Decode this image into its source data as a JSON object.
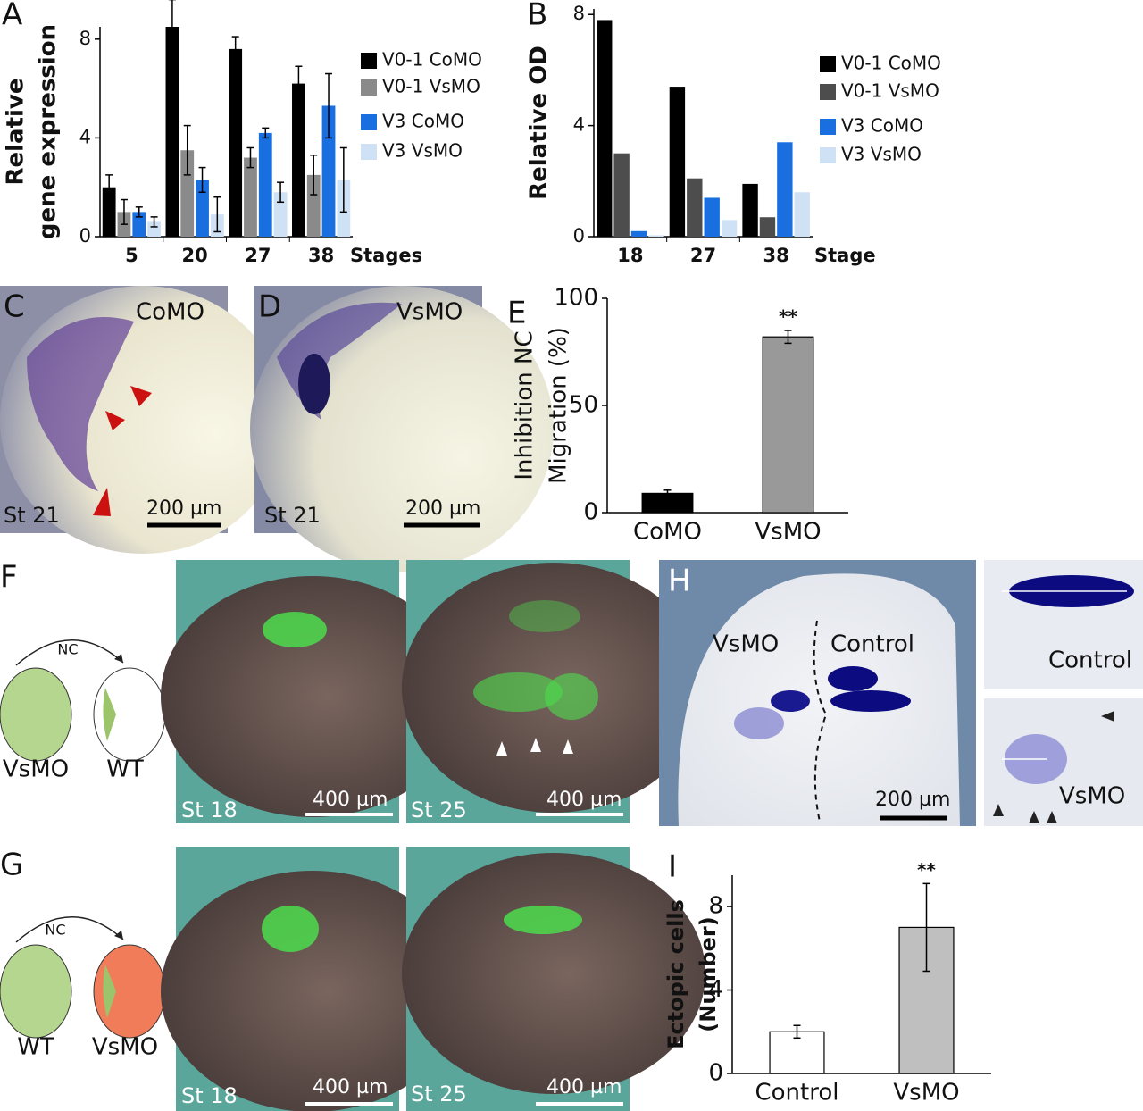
{
  "chart_data": [
    {
      "type": "bar",
      "panel": "A",
      "ylabel": [
        "Relative",
        "gene expression"
      ],
      "xlabel": "Stages",
      "categories": [
        "5",
        "20",
        "27",
        "38"
      ],
      "ylim": [
        0,
        8.5
      ],
      "yticks": [
        0,
        4,
        8
      ],
      "legend": "right",
      "errorbars": true,
      "series": [
        {
          "name": "V0-1 CoMO",
          "color": "#000000",
          "values": [
            2.0,
            8.5,
            7.6,
            6.2
          ],
          "errors": [
            0.5,
            1.1,
            0.5,
            0.7
          ]
        },
        {
          "name": "V0-1 VsMO",
          "color": "#8a8a8a",
          "values": [
            1.0,
            3.5,
            3.2,
            2.5
          ],
          "errors": [
            0.5,
            1.0,
            0.4,
            0.8
          ]
        },
        {
          "name": "V3 CoMO",
          "color": "#1a6fe0",
          "values": [
            1.0,
            2.3,
            4.2,
            5.3
          ],
          "errors": [
            0.2,
            0.5,
            0.2,
            1.3
          ]
        },
        {
          "name": "V3 VsMO",
          "color": "#cfe2f5",
          "values": [
            0.6,
            0.9,
            1.8,
            2.3
          ],
          "errors": [
            0.2,
            0.7,
            0.4,
            1.3
          ]
        }
      ]
    },
    {
      "type": "bar",
      "panel": "B",
      "ylabel": [
        "Relative OD"
      ],
      "xlabel": "Stage",
      "categories": [
        "18",
        "27",
        "38"
      ],
      "ylim": [
        0,
        8.2
      ],
      "yticks": [
        0,
        4,
        8
      ],
      "legend": "right",
      "series": [
        {
          "name": "V0-1 CoMO",
          "color": "#000000",
          "values": [
            7.8,
            5.4,
            1.9
          ]
        },
        {
          "name": "V0-1 VsMO",
          "color": "#4d4d4d",
          "values": [
            3.0,
            2.1,
            0.7
          ]
        },
        {
          "name": "V3 CoMO",
          "color": "#1a6fe0",
          "values": [
            0.2,
            1.4,
            3.4
          ]
        },
        {
          "name": "V3 VsMO",
          "color": "#cfe2f5",
          "values": [
            0.05,
            0.6,
            1.6
          ]
        }
      ]
    },
    {
      "type": "bar",
      "panel": "E",
      "ylabel": [
        "Inhibition NC",
        "Migration (%)"
      ],
      "categories": [
        "CoMO",
        "VsMO"
      ],
      "values": [
        9,
        82
      ],
      "errors": [
        1.5,
        3
      ],
      "colors": [
        "#000000",
        "#999999"
      ],
      "significance": [
        null,
        "**"
      ],
      "ylim": [
        0,
        100
      ],
      "yticks": [
        0,
        50,
        100
      ],
      "errorbars": true
    },
    {
      "type": "bar",
      "panel": "I",
      "ylabel": [
        "Ectopic cells",
        "(Number)"
      ],
      "categories": [
        "Control",
        "VsMO"
      ],
      "values": [
        2.0,
        7.0
      ],
      "errors": [
        0.3,
        2.1
      ],
      "colors": [
        "#ffffff",
        "#bfbfbf"
      ],
      "significance": [
        null,
        "**"
      ],
      "ylim": [
        0,
        9.5
      ],
      "yticks": [
        0,
        4,
        8
      ],
      "errorbars": true
    }
  ],
  "panels": {
    "C": {
      "letter": "C",
      "label": "CoMO",
      "stage": "St 21",
      "scale": "200 µm"
    },
    "D": {
      "letter": "D",
      "label": "VsMO",
      "stage": "St 21",
      "scale": "200 µm"
    },
    "F": {
      "letter": "F",
      "arrow": "NC",
      "donor": "VsMO",
      "host": "WT",
      "stage1": "St 18",
      "stage2": "St 25",
      "scale1": "400 µm",
      "scale2": "400 µm"
    },
    "G": {
      "letter": "G",
      "arrow": "NC",
      "donor": "WT",
      "host": "VsMO",
      "stage1": "St 18",
      "stage2": "St 25",
      "scale1": "400 µm",
      "scale2": "400 µm"
    },
    "H": {
      "letter": "H",
      "left": "VsMO",
      "right": "Control",
      "scale": "200 µm",
      "inset1": "Control",
      "inset2": "VsMO"
    }
  }
}
